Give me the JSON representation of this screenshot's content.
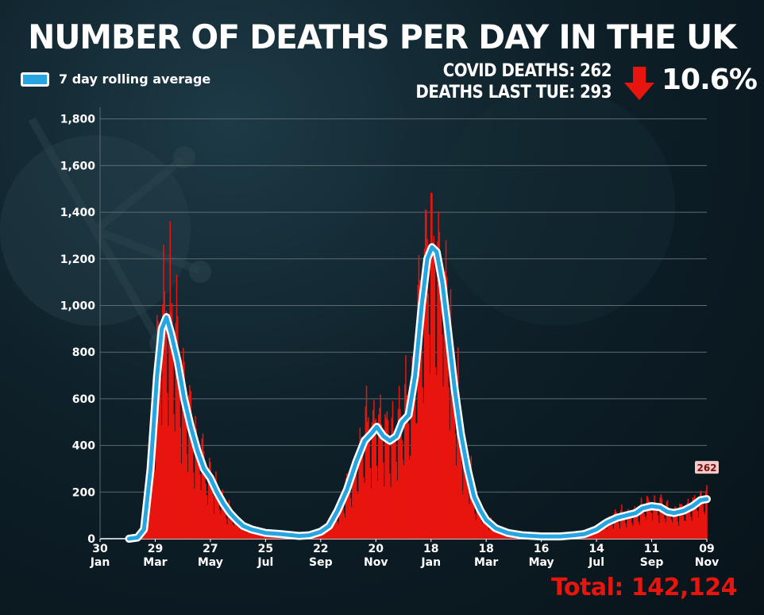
{
  "header": {
    "title": "NUMBER OF DEATHS PER DAY IN THE UK",
    "legend_label": "7 day rolling average",
    "covid_deaths": "COVID DEATHS: 262",
    "deaths_last_tue": "DEATHS LAST TUE: 293",
    "change_pct": "10.6%",
    "change_direction_icon": "arrow-down-icon",
    "total": "Total: 142,124"
  },
  "colors": {
    "bars": "#e8150f",
    "line": "#27a5e0",
    "line_outline": "#ffffff",
    "arrow": "#e8150f"
  },
  "chart_data": {
    "type": "bar",
    "title": "NUMBER OF DEATHS PER DAY IN THE UK",
    "xlabel": "",
    "ylabel": "",
    "ylim": [
      0,
      1850
    ],
    "y_ticks": [
      "0",
      "200",
      "400",
      "600",
      "800",
      "1,000",
      "1,200",
      "1,400",
      "1,600",
      "1,800"
    ],
    "y_tick_values": [
      0,
      200,
      400,
      600,
      800,
      1000,
      1200,
      1400,
      1600,
      1800
    ],
    "x_start": "2020-01-30",
    "x_end": "2021-11-09",
    "x_ticks": [
      {
        "day": "30",
        "month": "Jan",
        "date": "2020-01-30"
      },
      {
        "day": "29",
        "month": "Mar",
        "date": "2020-03-29"
      },
      {
        "day": "27",
        "month": "May",
        "date": "2020-05-27"
      },
      {
        "day": "25",
        "month": "Jul",
        "date": "2020-07-25"
      },
      {
        "day": "22",
        "month": "Sep",
        "date": "2020-09-22"
      },
      {
        "day": "20",
        "month": "Nov",
        "date": "2020-11-20"
      },
      {
        "day": "18",
        "month": "Jan",
        "date": "2021-01-18"
      },
      {
        "day": "18",
        "month": "Mar",
        "date": "2021-03-18"
      },
      {
        "day": "16",
        "month": "May",
        "date": "2021-05-16"
      },
      {
        "day": "14",
        "month": "Jul",
        "date": "2021-07-14"
      },
      {
        "day": "11",
        "month": "Sep",
        "date": "2021-09-11"
      },
      {
        "day": "09",
        "month": "Nov",
        "date": "2021-11-09"
      }
    ],
    "series": [
      {
        "name": "7 day rolling average",
        "kind": "line",
        "points": [
          [
            "2020-03-01",
            0
          ],
          [
            "2020-03-10",
            5
          ],
          [
            "2020-03-17",
            40
          ],
          [
            "2020-03-24",
            300
          ],
          [
            "2020-03-31",
            700
          ],
          [
            "2020-04-05",
            900
          ],
          [
            "2020-04-10",
            950
          ],
          [
            "2020-04-15",
            880
          ],
          [
            "2020-04-22",
            760
          ],
          [
            "2020-04-29",
            600
          ],
          [
            "2020-05-06",
            480
          ],
          [
            "2020-05-13",
            380
          ],
          [
            "2020-05-20",
            300
          ],
          [
            "2020-05-27",
            260
          ],
          [
            "2020-06-03",
            200
          ],
          [
            "2020-06-10",
            150
          ],
          [
            "2020-06-17",
            110
          ],
          [
            "2020-06-24",
            80
          ],
          [
            "2020-07-01",
            55
          ],
          [
            "2020-07-10",
            40
          ],
          [
            "2020-07-25",
            25
          ],
          [
            "2020-08-10",
            20
          ],
          [
            "2020-08-30",
            12
          ],
          [
            "2020-09-10",
            15
          ],
          [
            "2020-09-22",
            30
          ],
          [
            "2020-10-01",
            55
          ],
          [
            "2020-10-10",
            120
          ],
          [
            "2020-10-20",
            210
          ],
          [
            "2020-10-30",
            330
          ],
          [
            "2020-11-08",
            420
          ],
          [
            "2020-11-15",
            450
          ],
          [
            "2020-11-21",
            480
          ],
          [
            "2020-11-28",
            440
          ],
          [
            "2020-12-05",
            420
          ],
          [
            "2020-12-12",
            440
          ],
          [
            "2020-12-18",
            500
          ],
          [
            "2020-12-25",
            530
          ],
          [
            "2021-01-01",
            700
          ],
          [
            "2021-01-08",
            1000
          ],
          [
            "2021-01-14",
            1200
          ],
          [
            "2021-01-19",
            1250
          ],
          [
            "2021-01-24",
            1230
          ],
          [
            "2021-01-30",
            1100
          ],
          [
            "2021-02-05",
            900
          ],
          [
            "2021-02-12",
            650
          ],
          [
            "2021-02-19",
            450
          ],
          [
            "2021-02-26",
            300
          ],
          [
            "2021-03-05",
            180
          ],
          [
            "2021-03-12",
            120
          ],
          [
            "2021-03-18",
            80
          ],
          [
            "2021-03-28",
            45
          ],
          [
            "2021-04-10",
            25
          ],
          [
            "2021-04-25",
            15
          ],
          [
            "2021-05-16",
            10
          ],
          [
            "2021-06-05",
            10
          ],
          [
            "2021-06-20",
            15
          ],
          [
            "2021-07-01",
            20
          ],
          [
            "2021-07-14",
            40
          ],
          [
            "2021-07-25",
            70
          ],
          [
            "2021-08-05",
            90
          ],
          [
            "2021-08-15",
            100
          ],
          [
            "2021-08-25",
            110
          ],
          [
            "2021-09-01",
            130
          ],
          [
            "2021-09-11",
            140
          ],
          [
            "2021-09-20",
            135
          ],
          [
            "2021-09-28",
            115
          ],
          [
            "2021-10-05",
            110
          ],
          [
            "2021-10-15",
            120
          ],
          [
            "2021-10-25",
            140
          ],
          [
            "2021-11-02",
            165
          ],
          [
            "2021-11-09",
            170
          ]
        ]
      }
    ],
    "annotations": [
      {
        "text": "262",
        "date": "2021-11-09",
        "value": 262
      }
    ],
    "grid": true
  }
}
